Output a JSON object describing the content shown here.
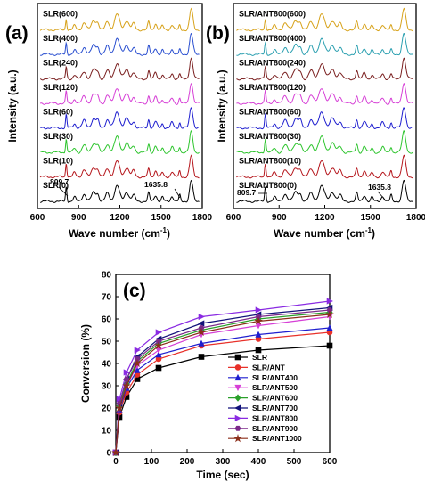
{
  "chart_data": [
    {
      "panel": "(a)",
      "type": "line",
      "xlabel": "Wave number (cm",
      "xlabel_sup": "-1",
      "xlabel_close": ")",
      "ylabel": "Intensity (a.u.)",
      "xlim": [
        600,
        1800
      ],
      "xticks": [
        "600",
        "900",
        "1200",
        "1500",
        "1800"
      ],
      "series": [
        {
          "name": "SLR(0)",
          "color": "#000000"
        },
        {
          "name": "SLR(10)",
          "color": "#b5161c"
        },
        {
          "name": "SLR(30)",
          "color": "#2ec52e"
        },
        {
          "name": "SLR(60)",
          "color": "#1f1fcf"
        },
        {
          "name": "SLR(120)",
          "color": "#d63fd6"
        },
        {
          "name": "SLR(240)",
          "color": "#7a1f1f"
        },
        {
          "name": "SLR(400)",
          "color": "#2a4fd0"
        },
        {
          "name": "SLR(600)",
          "color": "#d7a21a"
        }
      ],
      "annotations": [
        "809.7",
        "1635.8"
      ]
    },
    {
      "panel": "(b)",
      "type": "line",
      "xlabel": "Wave number (cm",
      "xlabel_sup": "-1",
      "xlabel_close": ")",
      "ylabel": "Intensity (a.u.)",
      "xlim": [
        600,
        1800
      ],
      "xticks": [
        "600",
        "900",
        "1200",
        "1500",
        "1800"
      ],
      "series": [
        {
          "name": "SLR/ANT800(0)",
          "color": "#000000"
        },
        {
          "name": "SLR/ANT800(10)",
          "color": "#b5161c"
        },
        {
          "name": "SLR/ANT800(30)",
          "color": "#2ec52e"
        },
        {
          "name": "SLR/ANT800(60)",
          "color": "#1f1fcf"
        },
        {
          "name": "SLR/ANT800(120)",
          "color": "#d63fd6"
        },
        {
          "name": "SLR/ANT800(240)",
          "color": "#7a1f1f"
        },
        {
          "name": "SLR/ANT800(400)",
          "color": "#2a9fb0"
        },
        {
          "name": "SLR/ANT800(600)",
          "color": "#d7a21a"
        }
      ],
      "annotations": [
        "809.7",
        "1635.8"
      ]
    },
    {
      "panel": "(c)",
      "type": "line",
      "xlabel": "Time (sec)",
      "ylabel": "Conversion (%)",
      "xlim": [
        0,
        600
      ],
      "ylim": [
        0,
        80
      ],
      "xticks": [
        0,
        100,
        200,
        300,
        400,
        500,
        600
      ],
      "yticks": [
        0,
        10,
        20,
        30,
        40,
        50,
        60,
        70,
        80
      ],
      "legend": "bottom-right",
      "x": [
        0,
        10,
        30,
        60,
        120,
        240,
        400,
        600
      ],
      "series": [
        {
          "name": "SLR",
          "color": "#000000",
          "marker": "square",
          "values": [
            0,
            16,
            25,
            33,
            38,
            43,
            46,
            48
          ]
        },
        {
          "name": "SLR/ANT",
          "color": "#e8312a",
          "marker": "circle",
          "values": [
            0,
            18,
            27,
            35,
            42,
            48,
            51,
            54
          ]
        },
        {
          "name": "SLR/ANT400",
          "color": "#1f1fcf",
          "marker": "triangle-up",
          "values": [
            0,
            19,
            29,
            37,
            44,
            49,
            53,
            56
          ]
        },
        {
          "name": "SLR/ANT500",
          "color": "#d63fd6",
          "marker": "triangle-down",
          "values": [
            0,
            20,
            30,
            39,
            46,
            53,
            57,
            61
          ]
        },
        {
          "name": "SLR/ANT600",
          "color": "#2aa02a",
          "marker": "diamond",
          "values": [
            0,
            21,
            31,
            41,
            49,
            55,
            60,
            63
          ]
        },
        {
          "name": "SLR/ANT700",
          "color": "#12127a",
          "marker": "triangle-left",
          "values": [
            0,
            22,
            33,
            43,
            51,
            58,
            62,
            65
          ]
        },
        {
          "name": "SLR/ANT800",
          "color": "#8a2be2",
          "marker": "triangle-right",
          "values": [
            0,
            24,
            36,
            46,
            54,
            61,
            64,
            68
          ]
        },
        {
          "name": "SLR/ANT900",
          "color": "#7b2a8a",
          "marker": "hexagon",
          "values": [
            0,
            22,
            33,
            42,
            50,
            56,
            61,
            64
          ]
        },
        {
          "name": "SLR/ANT1000",
          "color": "#8b2e1a",
          "marker": "star",
          "values": [
            0,
            20,
            30,
            40,
            48,
            54,
            59,
            62
          ]
        }
      ]
    }
  ]
}
